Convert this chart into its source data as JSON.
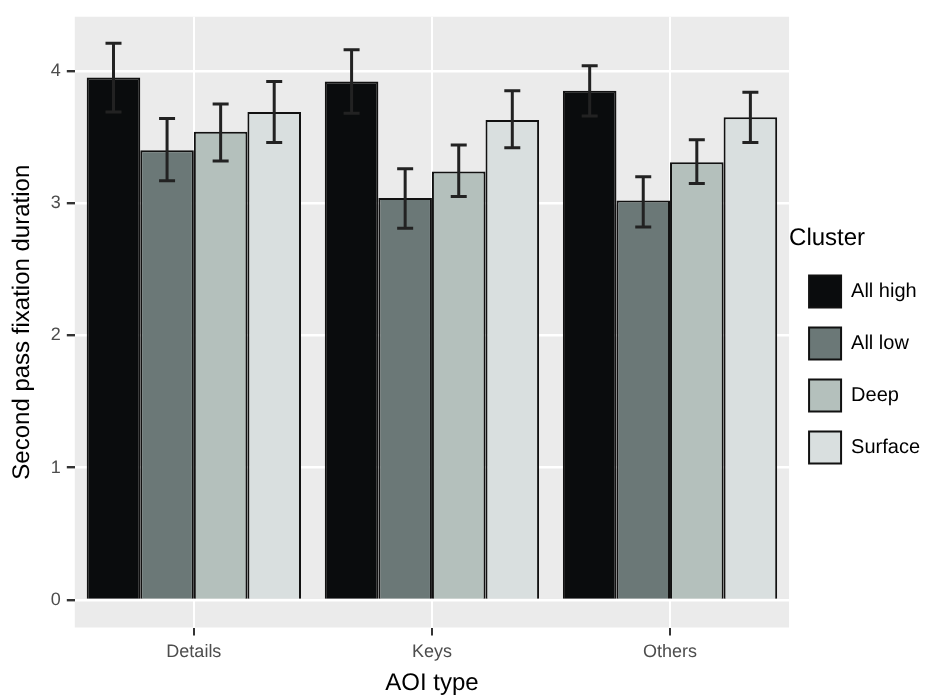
{
  "chart_data": {
    "type": "bar",
    "xlabel": "AOI type",
    "ylabel": "Second pass fixation duration",
    "legend_title": "Cluster",
    "legend": "right",
    "grid": true,
    "categories": [
      "Details",
      "Keys",
      "Others"
    ],
    "series": [
      {
        "name": "All high",
        "color": "#0a0c0d",
        "values": [
          3.95,
          3.92,
          3.85
        ],
        "errors": [
          0.26,
          0.24,
          0.19
        ]
      },
      {
        "name": "All low",
        "color": "#6b7877",
        "values": [
          3.4,
          3.04,
          3.02
        ],
        "errors": [
          [
            3.17,
            3.64
          ],
          [
            2.81,
            3.26
          ],
          [
            2.82,
            3.2
          ]
        ]
      },
      {
        "name": "Deep",
        "color": "#b4c0bc",
        "values": [
          3.54,
          3.24,
          3.31
        ],
        "errors": [
          [
            3.32,
            3.75
          ],
          [
            3.05,
            3.44
          ],
          [
            3.15,
            3.48
          ]
        ]
      },
      {
        "name": "Surface",
        "color": "#d9dfdf",
        "values": [
          3.69,
          3.63,
          3.65
        ],
        "errors": [
          [
            3.46,
            3.92
          ],
          [
            3.42,
            3.85
          ],
          [
            3.46,
            3.84
          ]
        ]
      }
    ],
    "ylim": [
      -0.21,
      4.41
    ],
    "yticks": [
      0,
      1,
      2,
      3,
      4
    ]
  }
}
